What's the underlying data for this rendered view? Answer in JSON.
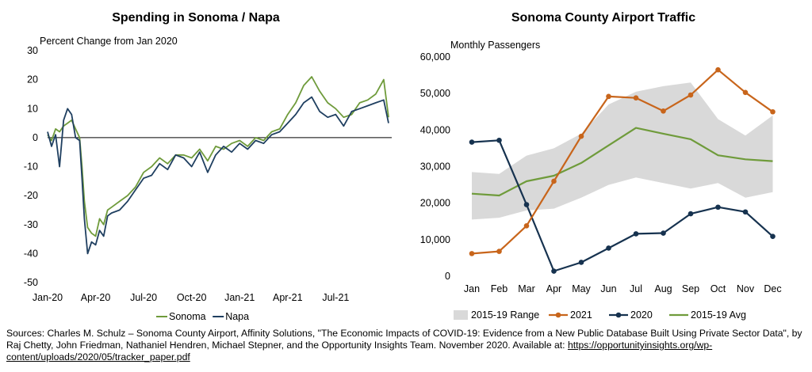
{
  "chart_data": [
    {
      "type": "line",
      "title": "Spending in Sonoma / Napa",
      "ylabel": "Percent Change from Jan 2020",
      "xlabel": "",
      "ylim": [
        -50,
        30
      ],
      "yticks": [
        30,
        20,
        10,
        0,
        -10,
        -20,
        -30,
        -40,
        -50
      ],
      "xticks": [
        "Jan-20",
        "Apr-20",
        "Jul-20",
        "Oct-20",
        "Jan-21",
        "Apr-21",
        "Jul-21"
      ],
      "x_unit": "month index (0 = Jan-20)",
      "x_range": [
        0,
        21.5
      ],
      "grid": false,
      "legend": "bottom",
      "series": [
        {
          "name": "Sonoma",
          "color": "#6f9b3b",
          "x": [
            0,
            0.25,
            0.5,
            0.75,
            1,
            1.25,
            1.5,
            1.75,
            2,
            2.15,
            2.3,
            2.5,
            2.75,
            3,
            3.25,
            3.5,
            3.75,
            4,
            4.5,
            5,
            5.5,
            6,
            6.5,
            7,
            7.5,
            8,
            8.5,
            9,
            9.5,
            10,
            10.5,
            11,
            11.5,
            12,
            12.5,
            13,
            13.5,
            14,
            14.5,
            15,
            15.5,
            16,
            16.5,
            17,
            17.5,
            18,
            18.5,
            19,
            19.5,
            20,
            20.5,
            21,
            21.3
          ],
          "values": [
            1,
            -1,
            3,
            2,
            4,
            5,
            6,
            3,
            0,
            -10,
            -22,
            -31,
            -33,
            -34,
            -28,
            -30,
            -25,
            -24,
            -22,
            -20,
            -17,
            -12,
            -10,
            -7,
            -9,
            -6,
            -6,
            -7,
            -4,
            -8,
            -3,
            -4,
            -2,
            -1,
            -3,
            0,
            -1,
            2,
            3,
            8,
            12,
            18,
            21,
            16,
            12,
            10,
            7,
            8,
            12,
            13,
            15,
            20,
            7
          ]
        },
        {
          "name": "Napa",
          "color": "#1f3f60",
          "x": [
            0,
            0.25,
            0.5,
            0.75,
            1,
            1.25,
            1.5,
            1.75,
            2,
            2.15,
            2.3,
            2.5,
            2.75,
            3,
            3.25,
            3.5,
            3.75,
            4,
            4.5,
            5,
            5.5,
            6,
            6.5,
            7,
            7.5,
            8,
            8.5,
            9,
            9.5,
            10,
            10.5,
            11,
            11.5,
            12,
            12.5,
            13,
            13.5,
            14,
            14.5,
            15,
            15.5,
            16,
            16.5,
            17,
            17.5,
            18,
            18.5,
            19,
            19.5,
            20,
            20.5,
            21,
            21.3
          ],
          "values": [
            2,
            -3,
            1,
            -10,
            6,
            10,
            8,
            0,
            -1,
            -14,
            -28,
            -40,
            -36,
            -37,
            -32,
            -34,
            -27,
            -26,
            -25,
            -22,
            -18,
            -14,
            -13,
            -9,
            -11,
            -6,
            -7,
            -10,
            -5,
            -12,
            -6,
            -3,
            -5,
            -2,
            -4,
            -1,
            -2,
            1,
            2,
            5,
            8,
            12,
            14,
            9,
            7,
            8,
            4,
            9,
            10,
            11,
            12,
            13,
            5
          ]
        }
      ]
    },
    {
      "type": "line",
      "title": "Sonoma County Airport Traffic",
      "ylabel": "Monthly  Passengers",
      "xlabel": "",
      "ylim": [
        0,
        60000
      ],
      "yticks": [
        "60,000",
        "50,000",
        "40,000",
        "30,000",
        "20,000",
        "10,000",
        "0"
      ],
      "categories": [
        "Jan",
        "Feb",
        "Mar",
        "Apr",
        "May",
        "Jun",
        "Jul",
        "Aug",
        "Sep",
        "Oct",
        "Nov",
        "Dec"
      ],
      "grid": false,
      "legend": "bottom",
      "range_band": {
        "name": "2015-19 Range",
        "color": "#d9d9d9",
        "low": [
          15500,
          16000,
          18000,
          18500,
          21500,
          25000,
          27000,
          25500,
          24000,
          25500,
          21500,
          23000
        ],
        "high": [
          28500,
          28000,
          33000,
          35000,
          39000,
          47000,
          50500,
          52000,
          53000,
          43000,
          38500,
          44000
        ]
      },
      "series": [
        {
          "name": "2021",
          "color": "#c8651b",
          "markers": true,
          "values": [
            6200,
            6800,
            13800,
            26000,
            38300,
            49200,
            48800,
            45200,
            49600,
            56500,
            50300,
            45000
          ]
        },
        {
          "name": "2020",
          "color": "#16324f",
          "markers": true,
          "values": [
            36700,
            37200,
            19600,
            1400,
            3800,
            7700,
            11600,
            11800,
            17100,
            18900,
            17600,
            10900
          ]
        },
        {
          "name": "2015-19 Avg",
          "color": "#6f9b3b",
          "markers": false,
          "values": [
            22600,
            22100,
            26000,
            27500,
            31000,
            35800,
            40600,
            39000,
            37500,
            33100,
            32000,
            31500
          ]
        }
      ]
    }
  ],
  "sources": {
    "text": "Sources: Charles M. Schulz – Sonoma County Airport, Affinity Solutions, \"The Economic Impacts of COVID-19: Evidence from a New Public Database Built Using Private Sector Data\", by Raj Chetty, John Friedman, Nathaniel Hendren, Michael Stepner, and the Opportunity Insights Team. November 2020. Available at: ",
    "link": "https://opportunityinsights.org/wp-content/uploads/2020/05/tracker_paper.pdf"
  }
}
